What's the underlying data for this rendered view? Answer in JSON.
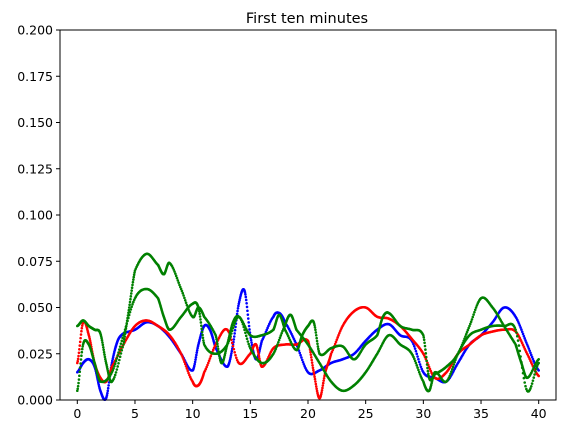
{
  "chart_data": {
    "type": "scatter",
    "title": "First ten minutes",
    "xlabel": "",
    "ylabel": "",
    "xlim": [
      -1.5,
      41.5
    ],
    "ylim": [
      0,
      0.2
    ],
    "xticks": [
      0,
      5,
      10,
      15,
      20,
      25,
      30,
      35,
      40
    ],
    "xtick_labels": [
      "0",
      "5",
      "10",
      "15",
      "20",
      "25",
      "30",
      "35",
      "40"
    ],
    "yticks": [
      0,
      0.025,
      0.05,
      0.075,
      0.1,
      0.125,
      0.15,
      0.175,
      0.2
    ],
    "ytick_labels": [
      "0.000",
      "0.025",
      "0.050",
      "0.075",
      "0.100",
      "0.125",
      "0.150",
      "0.175",
      "0.200"
    ],
    "grid": false,
    "legend": "none",
    "series": [
      {
        "color": "#0000ff",
        "x": [
          0,
          0.5,
          1,
          1.5,
          2,
          2.5,
          3,
          3.5,
          4,
          5,
          6,
          7,
          8,
          9,
          10,
          10.5,
          11,
          11.5,
          12,
          13,
          13.5,
          14,
          14.5,
          15,
          15.5,
          16,
          17,
          17.5,
          18,
          19,
          20,
          21,
          22,
          23,
          24,
          25,
          26,
          27,
          28,
          29,
          30,
          31,
          32,
          33,
          34,
          35,
          36,
          37,
          38,
          39,
          40
        ],
        "y": [
          0.015,
          0.02,
          0.022,
          0.018,
          0.005,
          0.001,
          0.02,
          0.032,
          0.036,
          0.038,
          0.042,
          0.04,
          0.034,
          0.025,
          0.016,
          0.03,
          0.04,
          0.038,
          0.028,
          0.018,
          0.03,
          0.052,
          0.059,
          0.035,
          0.022,
          0.032,
          0.045,
          0.047,
          0.042,
          0.03,
          0.015,
          0.016,
          0.02,
          0.022,
          0.025,
          0.032,
          0.038,
          0.041,
          0.035,
          0.032,
          0.015,
          0.012,
          0.01,
          0.02,
          0.03,
          0.035,
          0.042,
          0.05,
          0.045,
          0.03,
          0.016
        ]
      },
      {
        "color": "#ff0000",
        "x": [
          0,
          0.5,
          1,
          1.5,
          2,
          2.5,
          3,
          4,
          5,
          6,
          7,
          8,
          9,
          10,
          10.5,
          11,
          12,
          13,
          14,
          15,
          15.5,
          16,
          17,
          18,
          19,
          20,
          20.5,
          21,
          21.5,
          22,
          23,
          24,
          25,
          26,
          27,
          28,
          29,
          30,
          31,
          32,
          33,
          34,
          35,
          36,
          37,
          38,
          39,
          40
        ],
        "y": [
          0.02,
          0.042,
          0.035,
          0.02,
          0.012,
          0.01,
          0.018,
          0.03,
          0.04,
          0.043,
          0.04,
          0.035,
          0.025,
          0.01,
          0.008,
          0.015,
          0.03,
          0.038,
          0.02,
          0.025,
          0.03,
          0.018,
          0.028,
          0.03,
          0.03,
          0.032,
          0.015,
          0.001,
          0.015,
          0.025,
          0.04,
          0.048,
          0.05,
          0.045,
          0.044,
          0.04,
          0.033,
          0.025,
          0.012,
          0.015,
          0.025,
          0.03,
          0.035,
          0.037,
          0.038,
          0.037,
          0.025,
          0.013
        ]
      },
      {
        "color": "#008000",
        "x": [
          0,
          0.5,
          1,
          1.5,
          2,
          2.5,
          3,
          4,
          4.5,
          5,
          6,
          7,
          7.5,
          8,
          9,
          10,
          10.5,
          11,
          12,
          12.5,
          13,
          13.5,
          14,
          15,
          16,
          17,
          17.5,
          18,
          19,
          19.5,
          20,
          20.5,
          21,
          22,
          23,
          24,
          25,
          26,
          26.5,
          27,
          28,
          29,
          30,
          30.5,
          31,
          32,
          33,
          34,
          35,
          36,
          37,
          38,
          38.5,
          39,
          40
        ],
        "y": [
          0.04,
          0.043,
          0.04,
          0.038,
          0.036,
          0.02,
          0.01,
          0.03,
          0.05,
          0.07,
          0.079,
          0.073,
          0.068,
          0.074,
          0.06,
          0.045,
          0.05,
          0.045,
          0.035,
          0.02,
          0.03,
          0.042,
          0.045,
          0.035,
          0.035,
          0.038,
          0.046,
          0.038,
          0.027,
          0.035,
          0.04,
          0.042,
          0.025,
          0.028,
          0.029,
          0.022,
          0.03,
          0.035,
          0.045,
          0.047,
          0.04,
          0.038,
          0.035,
          0.012,
          0.014,
          0.018,
          0.025,
          0.04,
          0.055,
          0.05,
          0.04,
          0.03,
          0.02,
          0.012,
          0.022
        ]
      },
      {
        "color": "#008000",
        "x": [
          0,
          0.5,
          1,
          1.5,
          2,
          3,
          4,
          5,
          6,
          7,
          7.5,
          8,
          9,
          10,
          10.5,
          11,
          12,
          13,
          14,
          15,
          16,
          17,
          18,
          18.5,
          19,
          20,
          21,
          22,
          23,
          24,
          25,
          26,
          27,
          28,
          29,
          30,
          30.5,
          31,
          32,
          33,
          34,
          35,
          36,
          37,
          38,
          39,
          40
        ],
        "y": [
          0.005,
          0.03,
          0.03,
          0.02,
          0.01,
          0.015,
          0.035,
          0.055,
          0.06,
          0.055,
          0.045,
          0.038,
          0.045,
          0.052,
          0.05,
          0.03,
          0.025,
          0.03,
          0.045,
          0.028,
          0.02,
          0.025,
          0.04,
          0.046,
          0.038,
          0.03,
          0.02,
          0.01,
          0.005,
          0.008,
          0.015,
          0.025,
          0.035,
          0.03,
          0.025,
          0.01,
          0.005,
          0.015,
          0.01,
          0.025,
          0.035,
          0.038,
          0.04,
          0.04,
          0.038,
          0.005,
          0.02
        ]
      }
    ]
  }
}
